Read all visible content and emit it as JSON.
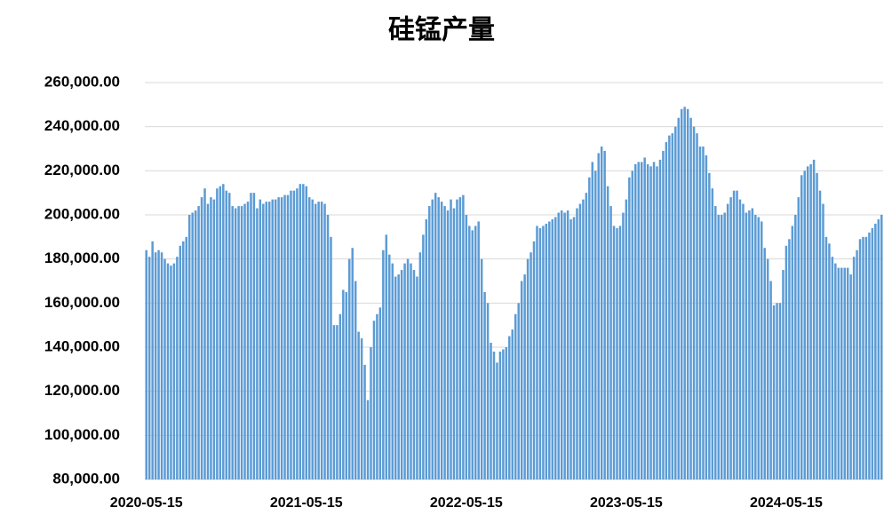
{
  "chart_data": {
    "type": "bar",
    "title": "硅锰产量",
    "color": "#5b9bd5",
    "grid": true,
    "ylim": [
      80000,
      260000
    ],
    "yticks": [
      {
        "value": 80000,
        "label": "80,000.00"
      },
      {
        "value": 100000,
        "label": "100,000.00"
      },
      {
        "value": 120000,
        "label": "120,000.00"
      },
      {
        "value": 140000,
        "label": "140,000.00"
      },
      {
        "value": 160000,
        "label": "160,000.00"
      },
      {
        "value": 180000,
        "label": "180,000.00"
      },
      {
        "value": 200000,
        "label": "200,000.00"
      },
      {
        "value": 220000,
        "label": "220,000.00"
      },
      {
        "value": 240000,
        "label": "240,000.00"
      },
      {
        "value": 260000,
        "label": "260,000.00"
      }
    ],
    "categories": [
      "2020-05-15",
      null,
      null,
      null,
      null,
      null,
      null,
      null,
      null,
      null,
      null,
      null,
      null,
      null,
      null,
      null,
      null,
      null,
      null,
      null,
      null,
      null,
      null,
      null,
      null,
      null,
      null,
      null,
      null,
      null,
      null,
      null,
      null,
      null,
      null,
      null,
      null,
      null,
      null,
      null,
      null,
      null,
      null,
      null,
      null,
      null,
      null,
      null,
      null,
      null,
      null,
      null,
      "2021-05-15",
      null,
      null,
      null,
      null,
      null,
      null,
      null,
      null,
      null,
      null,
      null,
      null,
      null,
      null,
      null,
      null,
      null,
      null,
      null,
      null,
      null,
      null,
      null,
      null,
      null,
      null,
      null,
      null,
      null,
      null,
      null,
      null,
      null,
      null,
      null,
      null,
      null,
      null,
      null,
      null,
      null,
      null,
      null,
      null,
      null,
      null,
      null,
      null,
      null,
      null,
      null,
      "2022-05-15",
      null,
      null,
      null,
      null,
      null,
      null,
      null,
      null,
      null,
      null,
      null,
      null,
      null,
      null,
      null,
      null,
      null,
      null,
      null,
      null,
      null,
      null,
      null,
      null,
      null,
      null,
      null,
      null,
      null,
      null,
      null,
      null,
      null,
      null,
      null,
      null,
      null,
      null,
      null,
      null,
      null,
      null,
      null,
      null,
      null,
      null,
      null,
      null,
      null,
      null,
      null,
      "2023-05-15",
      null,
      null,
      null,
      null,
      null,
      null,
      null,
      null,
      null,
      null,
      null,
      null,
      null,
      null,
      null,
      null,
      null,
      null,
      null,
      null,
      null,
      null,
      null,
      null,
      null,
      null,
      null,
      null,
      null,
      null,
      null,
      null,
      null,
      null,
      null,
      null,
      null,
      null,
      null,
      null,
      null,
      null,
      null,
      null,
      null,
      null,
      null,
      null,
      null,
      null,
      null,
      "2024-05-15",
      null,
      null,
      null,
      null,
      null,
      null,
      null,
      null,
      null,
      null,
      null,
      null,
      null,
      null,
      null,
      null,
      null,
      null,
      null,
      null,
      null,
      null,
      null,
      null,
      null,
      null,
      null,
      null,
      null,
      null,
      null
    ],
    "values": [
      184000,
      181000,
      188000,
      183000,
      184000,
      183000,
      180000,
      178000,
      177000,
      178000,
      181000,
      186000,
      188000,
      190000,
      200000,
      201000,
      202000,
      204000,
      208000,
      212000,
      205000,
      208000,
      207000,
      212000,
      213000,
      214000,
      211000,
      210000,
      204000,
      203000,
      204000,
      204000,
      205000,
      206000,
      210000,
      210000,
      203000,
      207000,
      205000,
      206000,
      206000,
      207000,
      207000,
      208000,
      208000,
      209000,
      209000,
      211000,
      211000,
      212000,
      214000,
      214000,
      213000,
      208000,
      207000,
      205000,
      206000,
      206000,
      205000,
      200000,
      190000,
      150000,
      150000,
      155000,
      166000,
      165000,
      180000,
      185000,
      170000,
      147000,
      144000,
      132000,
      116000,
      140000,
      152000,
      155000,
      158000,
      184000,
      191000,
      182000,
      178000,
      172000,
      173000,
      175000,
      178000,
      180000,
      178000,
      175000,
      172000,
      183000,
      191000,
      198000,
      204000,
      207000,
      210000,
      208000,
      206000,
      204000,
      202000,
      207000,
      203000,
      207000,
      208000,
      209000,
      200000,
      195000,
      193000,
      195000,
      197000,
      180000,
      165000,
      160000,
      142000,
      138000,
      133000,
      138000,
      139000,
      140000,
      145000,
      148000,
      155000,
      160000,
      170000,
      173000,
      180000,
      183000,
      188000,
      195000,
      194000,
      195000,
      196000,
      197000,
      198000,
      199000,
      201000,
      202000,
      201000,
      202000,
      198000,
      199000,
      203000,
      205000,
      207000,
      210000,
      217000,
      224000,
      220000,
      228000,
      231000,
      229000,
      213000,
      204000,
      195000,
      194000,
      195000,
      201000,
      207000,
      217000,
      220000,
      223000,
      224000,
      224000,
      226000,
      223000,
      222000,
      224000,
      222000,
      225000,
      229000,
      233000,
      236000,
      237000,
      240000,
      244000,
      248000,
      249000,
      248000,
      244000,
      240000,
      237000,
      231000,
      231000,
      227000,
      219000,
      212000,
      204000,
      200000,
      200000,
      201000,
      205000,
      208000,
      211000,
      211000,
      207000,
      205000,
      201000,
      202000,
      203000,
      200000,
      199000,
      197000,
      185000,
      180000,
      170000,
      159000,
      160000,
      160000,
      175000,
      186000,
      189000,
      195000,
      200000,
      208000,
      218000,
      220000,
      222000,
      223000,
      225000,
      219000,
      211000,
      205000,
      190000,
      187000,
      181000,
      178000,
      176000,
      176000,
      176000,
      176000,
      173000,
      181000,
      184000,
      189000,
      190000,
      190000,
      192000,
      194000,
      196000,
      198000,
      200000
    ]
  }
}
